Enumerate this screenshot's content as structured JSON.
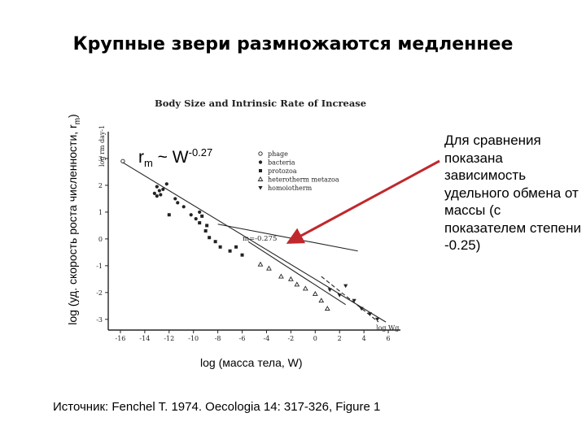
{
  "slide": {
    "title": "Крупные звери размножаются медленнее",
    "y_axis_caption_prefix": "log (уд. скорость роста численности, r",
    "y_axis_caption_sub": "m",
    "y_axis_caption_suffix": ")",
    "x_axis_caption": "log (масса тела, W)",
    "formula_base": "r",
    "formula_sub": "m",
    "formula_rest": " ~ W",
    "formula_exponent": "-0.27",
    "comparison_note": "Для сравнения показана зависимость удельного обмена от массы (с показателем степени -0.25)",
    "source": "Источник: Fenchel T. 1974. Oecologia 14: 317-326, Figure 1",
    "arrow_color": "#c0282d"
  },
  "figure": {
    "title": "Body Size and Intrinsic Rate of Increase",
    "ylabel": "log rm day-1",
    "xlabel": "log Wg",
    "regression_label": "m=-0.275",
    "legend": [
      "phage",
      "bacteria",
      "protozoa",
      "heterotherm metazoa",
      "homoiotherm"
    ]
  },
  "chart_data": {
    "type": "scatter",
    "title": "Body Size and Intrinsic Rate of Increase",
    "xlabel": "log Wg",
    "ylabel": "log rm day-1",
    "xlim": [
      -17,
      7
    ],
    "ylim": [
      -3.4,
      4
    ],
    "xticks": [
      -16,
      -14,
      -12,
      -10,
      -8,
      -6,
      -4,
      -2,
      0,
      2,
      4,
      6
    ],
    "yticks": [
      3,
      2,
      1,
      0,
      -1,
      -2,
      -3
    ],
    "lines": [
      {
        "kind": "regression",
        "style": "solid",
        "from": [
          -15.8,
          2.85
        ],
        "to": [
          5.8,
          -3.1
        ]
      },
      {
        "kind": "comparison",
        "style": "solid",
        "from": [
          -5.5,
          -0.1
        ],
        "to": [
          2.5,
          -2.45
        ]
      },
      {
        "kind": "homoiotherm",
        "style": "dashed",
        "from": [
          0.5,
          -1.4
        ],
        "to": [
          5.2,
          -3.1
        ]
      },
      {
        "kind": "metabolism-reference",
        "style": "solid",
        "from": [
          -8,
          0.55
        ],
        "to": [
          3.5,
          -0.45
        ]
      }
    ],
    "series": [
      {
        "name": "phage",
        "values": [
          [
            -15.8,
            2.9
          ]
        ]
      },
      {
        "name": "bacteria",
        "values": [
          [
            -13.0,
            1.95
          ],
          [
            -12.8,
            1.8
          ],
          [
            -13.2,
            1.7
          ],
          [
            -12.5,
            1.85
          ],
          [
            -13.0,
            1.6
          ],
          [
            -12.2,
            2.05
          ],
          [
            -12.7,
            1.65
          ],
          [
            -11.5,
            1.5
          ],
          [
            -10.2,
            0.9
          ],
          [
            -9.8,
            0.75
          ],
          [
            -9.5,
            1.0
          ],
          [
            -10.8,
            1.2
          ],
          [
            -11.3,
            1.35
          ]
        ]
      },
      {
        "name": "protozoa",
        "values": [
          [
            -12.0,
            0.9
          ],
          [
            -9.5,
            0.6
          ],
          [
            -9.0,
            0.3
          ],
          [
            -8.7,
            0.05
          ],
          [
            -8.2,
            -0.1
          ],
          [
            -7.8,
            -0.3
          ],
          [
            -7.0,
            -0.45
          ],
          [
            -6.5,
            -0.3
          ],
          [
            -9.3,
            0.85
          ],
          [
            -8.9,
            0.5
          ],
          [
            -6.0,
            -0.6
          ]
        ]
      },
      {
        "name": "heterotherm metazoa",
        "values": [
          [
            -4.5,
            -0.95
          ],
          [
            -3.8,
            -1.1
          ],
          [
            -2.8,
            -1.4
          ],
          [
            -2.0,
            -1.5
          ],
          [
            -1.5,
            -1.7
          ],
          [
            -0.8,
            -1.85
          ],
          [
            0.0,
            -2.05
          ],
          [
            0.5,
            -2.3
          ],
          [
            1.0,
            -2.6
          ]
        ]
      },
      {
        "name": "homoiotherm",
        "values": [
          [
            1.2,
            -1.9
          ],
          [
            2.0,
            -2.1
          ],
          [
            2.5,
            -1.75
          ],
          [
            3.2,
            -2.3
          ],
          [
            3.8,
            -2.6
          ],
          [
            4.5,
            -2.8
          ],
          [
            5.1,
            -3.0
          ]
        ]
      }
    ],
    "grid": false,
    "legend_position": "top-right"
  }
}
